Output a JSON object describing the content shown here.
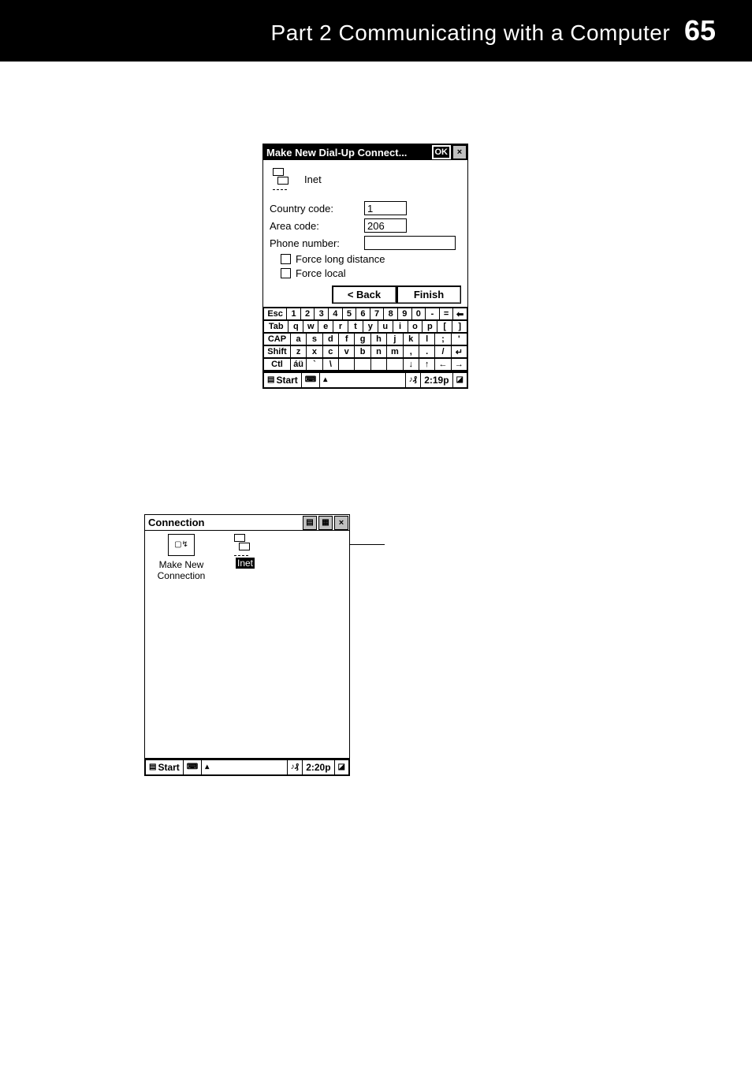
{
  "header": {
    "part": "Part 2  Communicating with a Computer",
    "pagenum": "65"
  },
  "ss1": {
    "title": "Make New Dial-Up Connect...",
    "ok": "OK",
    "conn_name": "Inet",
    "country_label": "Country code:",
    "country_value": "1",
    "area_label": "Area code:",
    "area_value": "206",
    "phone_label": "Phone number:",
    "phone_value": "",
    "force_long": "Force long distance",
    "force_local": "Force local",
    "back": "< Back",
    "finish": "Finish",
    "kbd": {
      "r1": [
        "Esc",
        "1",
        "2",
        "3",
        "4",
        "5",
        "6",
        "7",
        "8",
        "9",
        "0",
        "-",
        "=",
        "⬅"
      ],
      "r2": [
        "Tab",
        "q",
        "w",
        "e",
        "r",
        "t",
        "y",
        "u",
        "i",
        "o",
        "p",
        "[",
        "]"
      ],
      "r3": [
        "CAP",
        "a",
        "s",
        "d",
        "f",
        "g",
        "h",
        "j",
        "k",
        "l",
        ";",
        "'"
      ],
      "r4": [
        "Shift",
        "z",
        "x",
        "c",
        "v",
        "b",
        "n",
        "m",
        ",",
        ".",
        "/",
        "↵"
      ],
      "r5": [
        "Ctl",
        "áü",
        "`",
        "\\",
        "",
        "",
        "",
        "",
        "↓",
        "↑",
        "←",
        "→"
      ]
    },
    "taskbar": {
      "start": "Start",
      "time": "2:19p"
    }
  },
  "ss2": {
    "title": "Connection",
    "make_new": "Make New\nConnection",
    "inet": "Inet",
    "taskbar": {
      "start": "Start",
      "time": "2:20p"
    }
  }
}
